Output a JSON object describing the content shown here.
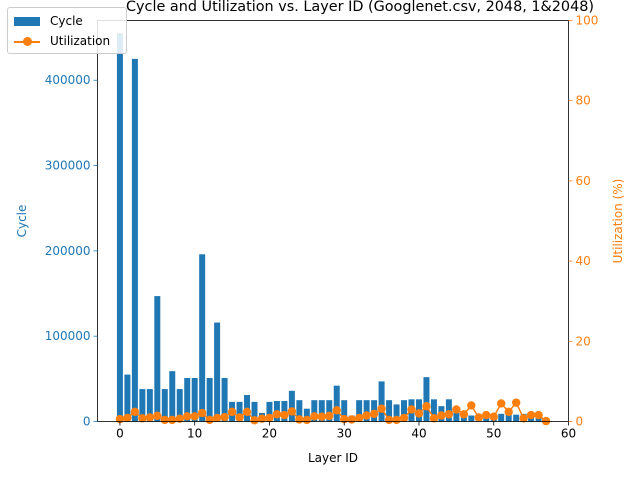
{
  "chart_data": {
    "type": "bar",
    "title": "Cycle and Utilization vs. Layer ID (Googlenet.csv, 2048, 1&2048)",
    "xlabel": "Layer ID",
    "ylabel_left": "Cycle",
    "ylabel_right": "Utilization (%)",
    "xlim": [
      -3.0,
      60.0
    ],
    "ylim_left": [
      0,
      470000
    ],
    "ylim_right": [
      0,
      100
    ],
    "x_ticks": [
      0,
      10,
      20,
      30,
      40,
      50,
      60
    ],
    "y_left_ticks": [
      0,
      100000,
      200000,
      300000,
      400000
    ],
    "y_right_ticks": [
      0,
      20,
      40,
      60,
      80,
      100
    ],
    "colors": {
      "cycle": "#1f77b4",
      "utilization": "#ff7f0e"
    },
    "legend_position": "top-left",
    "grid": false,
    "series": [
      {
        "name": "Cycle",
        "kind": "bar",
        "axis": "left",
        "x": [
          0,
          1,
          2,
          3,
          4,
          5,
          6,
          7,
          8,
          9,
          10,
          11,
          12,
          13,
          14,
          15,
          16,
          17,
          18,
          19,
          20,
          21,
          22,
          23,
          24,
          25,
          26,
          27,
          28,
          29,
          30,
          31,
          32,
          33,
          34,
          35,
          36,
          37,
          38,
          39,
          40,
          41,
          42,
          43,
          44,
          45,
          46,
          47,
          48,
          49,
          50,
          51,
          52,
          53,
          54,
          55,
          56,
          57
        ],
        "values": [
          455000,
          55000,
          425000,
          38000,
          38000,
          147000,
          38000,
          59000,
          38000,
          51000,
          51000,
          196000,
          51000,
          116000,
          51000,
          23000,
          23000,
          31000,
          23000,
          10000,
          23000,
          24000,
          24000,
          36000,
          25000,
          15000,
          25000,
          25000,
          25000,
          42000,
          25000,
          7000,
          25000,
          25000,
          25000,
          47000,
          25000,
          20000,
          25000,
          26000,
          26000,
          52000,
          26000,
          18000,
          26000,
          10000,
          8000,
          7000,
          8000,
          9000,
          7000,
          9000,
          9000,
          8000,
          9000,
          8000,
          9000,
          2000
        ]
      },
      {
        "name": "Utilization",
        "kind": "line",
        "axis": "right",
        "x": [
          0,
          1,
          2,
          3,
          4,
          5,
          6,
          7,
          8,
          9,
          10,
          11,
          12,
          13,
          14,
          15,
          16,
          17,
          18,
          19,
          20,
          21,
          22,
          23,
          24,
          25,
          26,
          27,
          28,
          29,
          30,
          31,
          32,
          33,
          34,
          35,
          36,
          37,
          38,
          39,
          40,
          41,
          42,
          43,
          44,
          45,
          46,
          47,
          48,
          49,
          50,
          51,
          52,
          53,
          54,
          55,
          56,
          57
        ],
        "values": [
          0.6,
          0.9,
          2.4,
          0.8,
          1.0,
          1.4,
          0.4,
          0.4,
          0.7,
          1.3,
          1.3,
          2.1,
          0.4,
          0.9,
          1.1,
          2.4,
          1.0,
          2.4,
          0.3,
          0.7,
          0.9,
          1.8,
          1.6,
          2.5,
          0.5,
          0.4,
          1.3,
          1.2,
          1.4,
          2.8,
          0.6,
          0.5,
          0.9,
          1.5,
          1.9,
          3.2,
          0.4,
          0.4,
          0.9,
          3.0,
          2.0,
          3.8,
          0.8,
          1.5,
          1.8,
          3.0,
          1.8,
          4.0,
          1.0,
          1.6,
          1.2,
          4.5,
          2.4,
          4.7,
          0.8,
          1.6,
          1.6,
          0.1
        ]
      }
    ]
  }
}
